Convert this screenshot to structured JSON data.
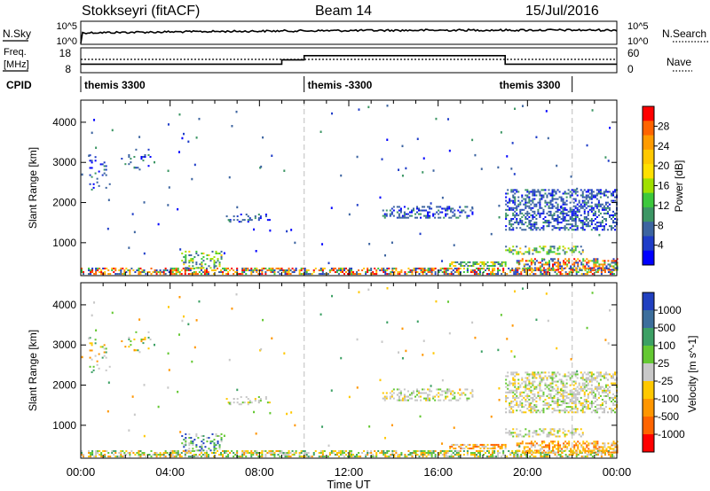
{
  "header": {
    "station": "Stokkseyri (fitACF)",
    "beam": "Beam 14",
    "date": "15/Jul/2016"
  },
  "nsky_panel": {
    "left_label": "N.Sky",
    "right_label": "N.Search",
    "left_ticks": [
      "10^5",
      "10^0"
    ],
    "right_ticks": [
      "10^5",
      "10^0"
    ]
  },
  "freq_panel": {
    "left_label_1": "Freq.",
    "left_label_2": "[MHz]",
    "right_label": "Nave",
    "left_ticks": [
      "18",
      "8"
    ],
    "right_ticks": [
      "60",
      "0"
    ],
    "freq_steps": [
      {
        "start_h": 0,
        "end_h": 9,
        "level": 0.38
      },
      {
        "start_h": 9,
        "end_h": 10,
        "level": 0.55
      },
      {
        "start_h": 10,
        "end_h": 19,
        "level": 0.72
      },
      {
        "start_h": 19,
        "end_h": 24,
        "level": 0.38
      }
    ]
  },
  "cpid": {
    "label": "CPID",
    "segments": [
      {
        "start_h": 0,
        "end_h": 10,
        "text": "themis 3300"
      },
      {
        "start_h": 10,
        "end_h": 22,
        "text": "themis -3300"
      },
      {
        "start_h": 22,
        "end_h": 24,
        "text": "themis 3300"
      }
    ]
  },
  "axes": {
    "ylabel": "Slant Range [km]",
    "xlabel": "Time UT",
    "y_ticks": [
      "4000",
      "3000",
      "2000",
      "1000"
    ],
    "y_tick_values": [
      4000,
      3000,
      2000,
      1000
    ],
    "y_range": [
      180,
      4550
    ],
    "x_range": [
      0,
      24
    ],
    "x_ticks": [
      "00:00",
      "04:00",
      "08:00",
      "12:00",
      "16:00",
      "20:00",
      "00:00"
    ],
    "x_tick_values": [
      0,
      4,
      8,
      12,
      16,
      20,
      24
    ],
    "dashed_times": [
      10,
      22
    ]
  },
  "power_colorbar": {
    "title": "Power [dB]",
    "tick_labels": [
      "28",
      "24",
      "20",
      "16",
      "12",
      "8",
      "4"
    ],
    "colors": [
      "#ff0000",
      "#ff6400",
      "#ff9b00",
      "#ffc800",
      "#ffe000",
      "#a0e000",
      "#3cc83c",
      "#3c9664",
      "#3c64a0",
      "#1e3cc8",
      "#0000ff"
    ]
  },
  "velocity_colorbar": {
    "title": "Velocity [m s^-1]",
    "tick_labels": [
      "1000",
      "500",
      "100",
      "25",
      "-25",
      "-100",
      "-500",
      "-1000"
    ],
    "colors": [
      "#2040c0",
      "#3c6e9c",
      "#3ca064",
      "#64c832",
      "#c8c8c8",
      "#ffc800",
      "#ff9600",
      "#ff6400",
      "#ff0000"
    ]
  },
  "chart_data": {
    "type": "heatmap",
    "title": "Stokkseyri (fitACF)",
    "xlabel": "Time UT",
    "ylabel": "Slant Range [km]",
    "xlim": [
      0,
      24
    ],
    "ylim": [
      180,
      4550
    ],
    "scatter_regions": [
      {
        "t0": 0,
        "t1": 24,
        "r0": 200,
        "r1": 380,
        "density": 0.55,
        "power": "high",
        "velocity": "mixed"
      },
      {
        "t0": 0.3,
        "t1": 1.3,
        "r0": 2300,
        "r1": 3200,
        "density": 0.12,
        "power": "low",
        "velocity": "mixed"
      },
      {
        "t0": 1.8,
        "t1": 3.3,
        "r0": 2800,
        "r1": 3300,
        "density": 0.12,
        "power": "low",
        "velocity": "mixed"
      },
      {
        "t0": 4.5,
        "t1": 6.3,
        "r0": 350,
        "r1": 800,
        "density": 0.3,
        "power": "mid",
        "velocity": "positive"
      },
      {
        "t0": 6.5,
        "t1": 8.5,
        "r0": 1500,
        "r1": 1700,
        "density": 0.2,
        "power": "low",
        "velocity": "near-zero"
      },
      {
        "t0": 13.5,
        "t1": 17.5,
        "r0": 1600,
        "r1": 1900,
        "density": 0.35,
        "power": "low",
        "velocity": "near-zero"
      },
      {
        "t0": 16.5,
        "t1": 19.0,
        "r0": 400,
        "r1": 500,
        "density": 0.6,
        "power": "mid",
        "velocity": "negative"
      },
      {
        "t0": 19.0,
        "t1": 24.0,
        "r0": 1300,
        "r1": 2300,
        "density": 0.45,
        "power": "low",
        "velocity": "near-zero"
      },
      {
        "t0": 19.0,
        "t1": 22.5,
        "r0": 700,
        "r1": 900,
        "density": 0.4,
        "power": "mid",
        "velocity": "near-zero"
      },
      {
        "t0": 19.5,
        "t1": 24.0,
        "r0": 300,
        "r1": 600,
        "density": 0.5,
        "power": "high",
        "velocity": "negative"
      }
    ]
  }
}
